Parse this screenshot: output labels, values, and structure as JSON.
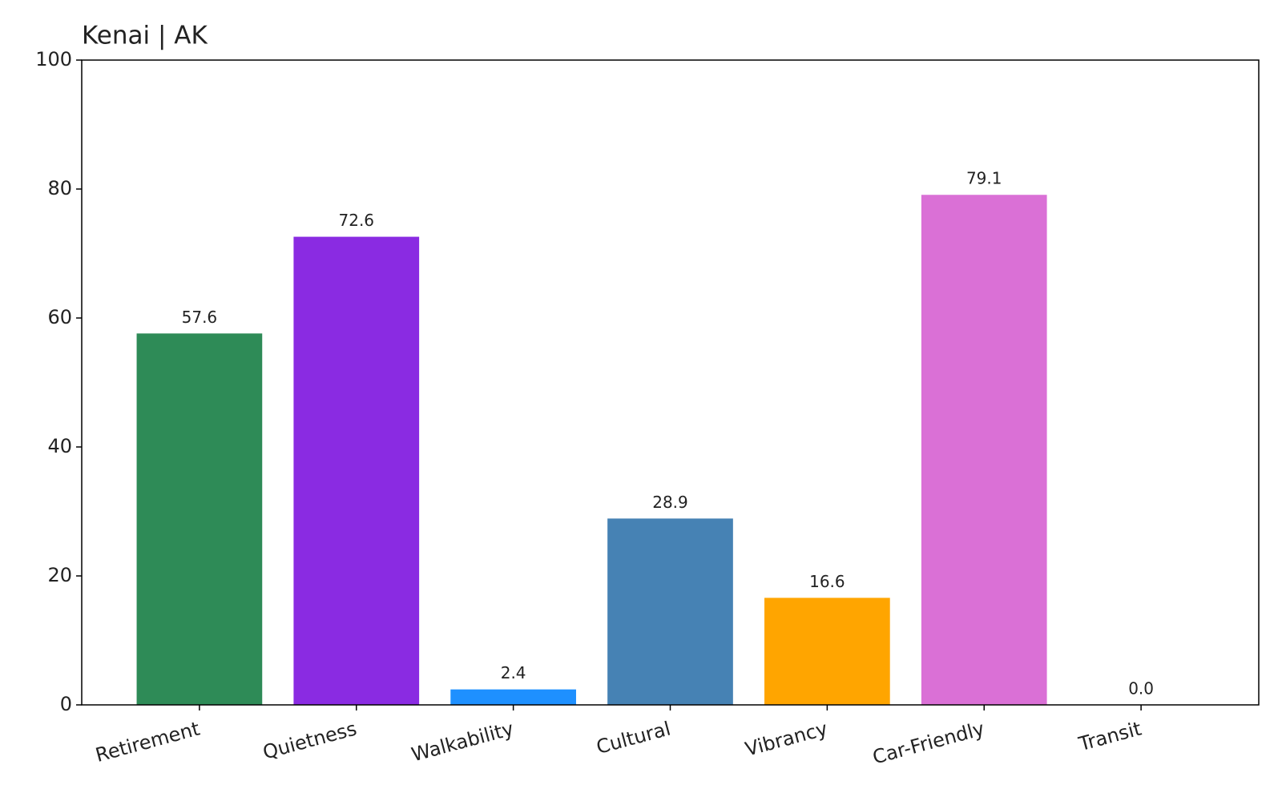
{
  "chart_data": {
    "type": "bar",
    "title": "Kenai | AK",
    "categories": [
      "Retirement",
      "Quietness",
      "Walkability",
      "Cultural",
      "Vibrancy",
      "Car-Friendly",
      "Transit"
    ],
    "values": [
      57.6,
      72.6,
      2.4,
      28.9,
      16.6,
      79.1,
      0
    ],
    "value_labels": [
      "57.6",
      "72.6",
      "2.4",
      "28.9",
      "16.6",
      "79.1",
      "0.0"
    ],
    "colors": [
      "#2e8b57",
      "#8a2be2",
      "#1e90ff",
      "#4682b4",
      "#ffa500",
      "#da70d6",
      "#808080"
    ],
    "ylim": [
      0,
      100
    ],
    "yticks": [
      0,
      20,
      40,
      60,
      80,
      100
    ],
    "grid": false
  }
}
